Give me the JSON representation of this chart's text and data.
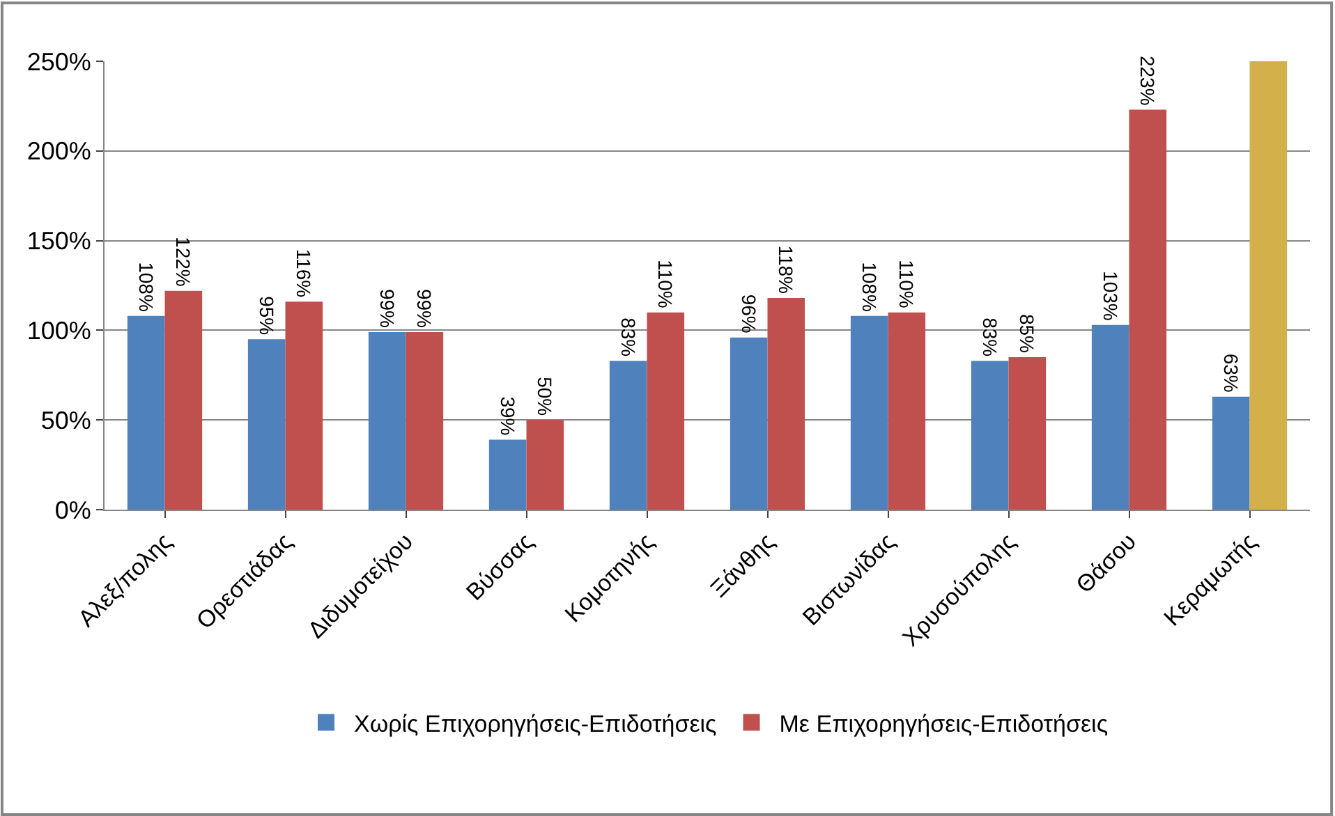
{
  "chart_data": {
    "type": "bar",
    "categories": [
      "Αλεξ/πολης",
      "Ορεστιάδας",
      "Διδυμοτείχου",
      "Βύσσας",
      "Κομοτηνής",
      "Ξάνθης",
      "Βιστωνίδας",
      "Χρυσούπολης",
      "Θάσου",
      "Κεραμωτής"
    ],
    "series": [
      {
        "name": "Χωρίς Επιχορηγήσεις-Επιδοτήσεις",
        "color": "#4f81bd",
        "values": [
          108,
          95,
          99,
          39,
          83,
          96,
          108,
          83,
          103,
          63
        ],
        "value_labels": [
          "108%",
          "95%",
          "99%",
          "39%",
          "83%",
          "96%",
          "108%",
          "83%",
          "103%",
          "63%"
        ]
      },
      {
        "name": "Με Επιχορηγήσεις-Επιδοτήσεις",
        "color": "#c0504d",
        "colors": [
          null,
          null,
          null,
          null,
          null,
          null,
          null,
          null,
          null,
          "#d4b04a"
        ],
        "values": [
          122,
          116,
          99,
          50,
          110,
          118,
          110,
          85,
          223,
          250
        ],
        "value_labels": [
          "122%",
          "116%",
          "99%",
          "50%",
          "110%",
          "118%",
          "110%",
          "85%",
          "223%",
          null
        ]
      }
    ],
    "ylim": [
      0,
      250
    ],
    "yticks": [
      {
        "value": 0,
        "label": "0%"
      },
      {
        "value": 50,
        "label": "50%"
      },
      {
        "value": 100,
        "label": "100%"
      },
      {
        "value": 150,
        "label": "150%"
      },
      {
        "value": 200,
        "label": "200%"
      },
      {
        "value": 250,
        "label": "250%"
      }
    ],
    "grid": "y",
    "legend": "bottom"
  }
}
